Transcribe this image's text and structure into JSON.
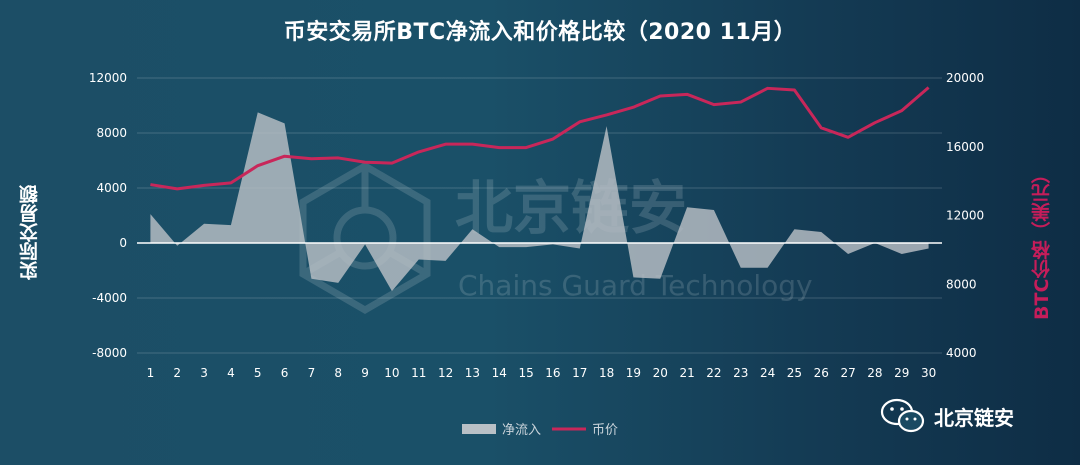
{
  "chart_data": {
    "type": "area+line",
    "title": "币安交易所BTC净流入和价格比较（2020 11月）",
    "ylabel_left": "实际交易额",
    "ylabel_right": "BTC价格（美元）",
    "categories": [
      "1",
      "2",
      "3",
      "4",
      "5",
      "6",
      "7",
      "8",
      "9",
      "10",
      "11",
      "12",
      "13",
      "14",
      "15",
      "16",
      "17",
      "18",
      "19",
      "20",
      "21",
      "22",
      "23",
      "24",
      "25",
      "26",
      "27",
      "28",
      "29",
      "30"
    ],
    "y_left": {
      "min": -8000,
      "max": 12000,
      "ticks": [
        "12000",
        "8000",
        "4000",
        "0",
        "-4000",
        "-8000"
      ]
    },
    "y_right": {
      "min": 4000,
      "max": 20000,
      "ticks": [
        "20000",
        "16000",
        "12000",
        "8000",
        "4000"
      ]
    },
    "series": [
      {
        "name": "净流入",
        "kind": "area",
        "axis": "left",
        "color": "#b9c0c6",
        "values": [
          2100,
          -200,
          1400,
          1300,
          9500,
          8700,
          -2600,
          -2900,
          -100,
          -3500,
          -1200,
          -1300,
          1000,
          -300,
          -300,
          -100,
          -400,
          8500,
          -2500,
          -2600,
          2600,
          2400,
          -1800,
          -1800,
          1000,
          800,
          -800,
          0,
          -800,
          -400
        ]
      },
      {
        "name": "币价",
        "kind": "line",
        "axis": "right",
        "color": "#c8275a",
        "values": [
          13800,
          13550,
          13750,
          13900,
          14900,
          15450,
          15300,
          15350,
          15100,
          15050,
          15700,
          16150,
          16150,
          15950,
          15950,
          16450,
          17450,
          17850,
          18300,
          18950,
          19050,
          18450,
          18600,
          19400,
          19300,
          17100,
          16550,
          17400,
          18100,
          19450
        ]
      }
    ],
    "grid": true,
    "legend_position": "bottom"
  },
  "watermark": {
    "name": "北京链安",
    "english": "Chains Guard Technology"
  },
  "brand": {
    "name": "北京链安",
    "icon": "wechat-icon"
  }
}
